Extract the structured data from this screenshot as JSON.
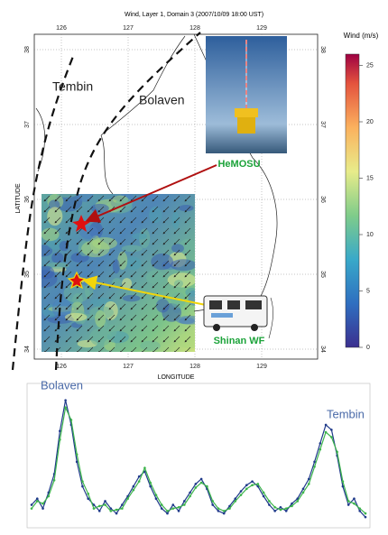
{
  "map": {
    "title": "Wind, Layer 1, Domain 3 (2007/10/09 18:00 UST)",
    "x_label": "LONGITUDE",
    "y_label": "LATITUDE",
    "lon_ticks": [
      126,
      127,
      128,
      129
    ],
    "lat_ticks": [
      38,
      37,
      36,
      35,
      34
    ],
    "colorbar": {
      "title": "Wind (m/s)",
      "lim": [
        0,
        26
      ],
      "ticks": [
        0,
        5,
        10,
        15,
        20,
        25
      ]
    },
    "typhoons": [
      "Tembin",
      "Bolaven"
    ],
    "sites": [
      "HeMOSU",
      "Shinan WF"
    ]
  },
  "chart_data": {
    "type": "line",
    "annotations": [
      "Bolaven",
      "Tembin"
    ],
    "ylim": [
      0,
      11
    ],
    "series": [
      {
        "color": "#1f3a8a",
        "values": [
          1.5,
          2.0,
          1.2,
          2.5,
          4.0,
          7.5,
          10.0,
          8.0,
          5.0,
          3.0,
          2.0,
          1.5,
          1.0,
          1.8,
          1.2,
          0.8,
          1.5,
          2.2,
          3.0,
          3.8,
          4.2,
          3.0,
          2.0,
          1.2,
          0.8,
          1.5,
          1.0,
          1.8,
          2.5,
          3.2,
          3.6,
          2.8,
          1.5,
          1.0,
          0.8,
          1.4,
          2.0,
          2.6,
          3.1,
          3.4,
          3.0,
          2.2,
          1.5,
          1.0,
          1.3,
          1.0,
          1.6,
          2.0,
          2.8,
          3.6,
          5.0,
          6.5,
          8.0,
          7.6,
          5.5,
          3.0,
          1.5,
          2.0,
          1.0,
          0.5
        ]
      },
      {
        "color": "#3cb44b",
        "values": [
          1.2,
          1.8,
          1.6,
          2.2,
          3.5,
          6.8,
          9.4,
          8.4,
          5.6,
          3.4,
          2.4,
          1.2,
          1.4,
          1.5,
          1.0,
          1.1,
          1.2,
          2.0,
          2.7,
          3.4,
          4.5,
          3.3,
          2.3,
          1.5,
          1.0,
          1.2,
          1.3,
          1.5,
          2.2,
          2.9,
          3.3,
          3.0,
          1.8,
          1.2,
          1.0,
          1.2,
          1.8,
          2.3,
          2.8,
          3.1,
          3.2,
          2.5,
          1.8,
          1.3,
          1.1,
          1.2,
          1.4,
          1.8,
          2.5,
          3.2,
          4.6,
          6.0,
          7.4,
          7.0,
          5.8,
          3.4,
          1.8,
          1.6,
          1.2,
          0.8
        ]
      }
    ]
  }
}
